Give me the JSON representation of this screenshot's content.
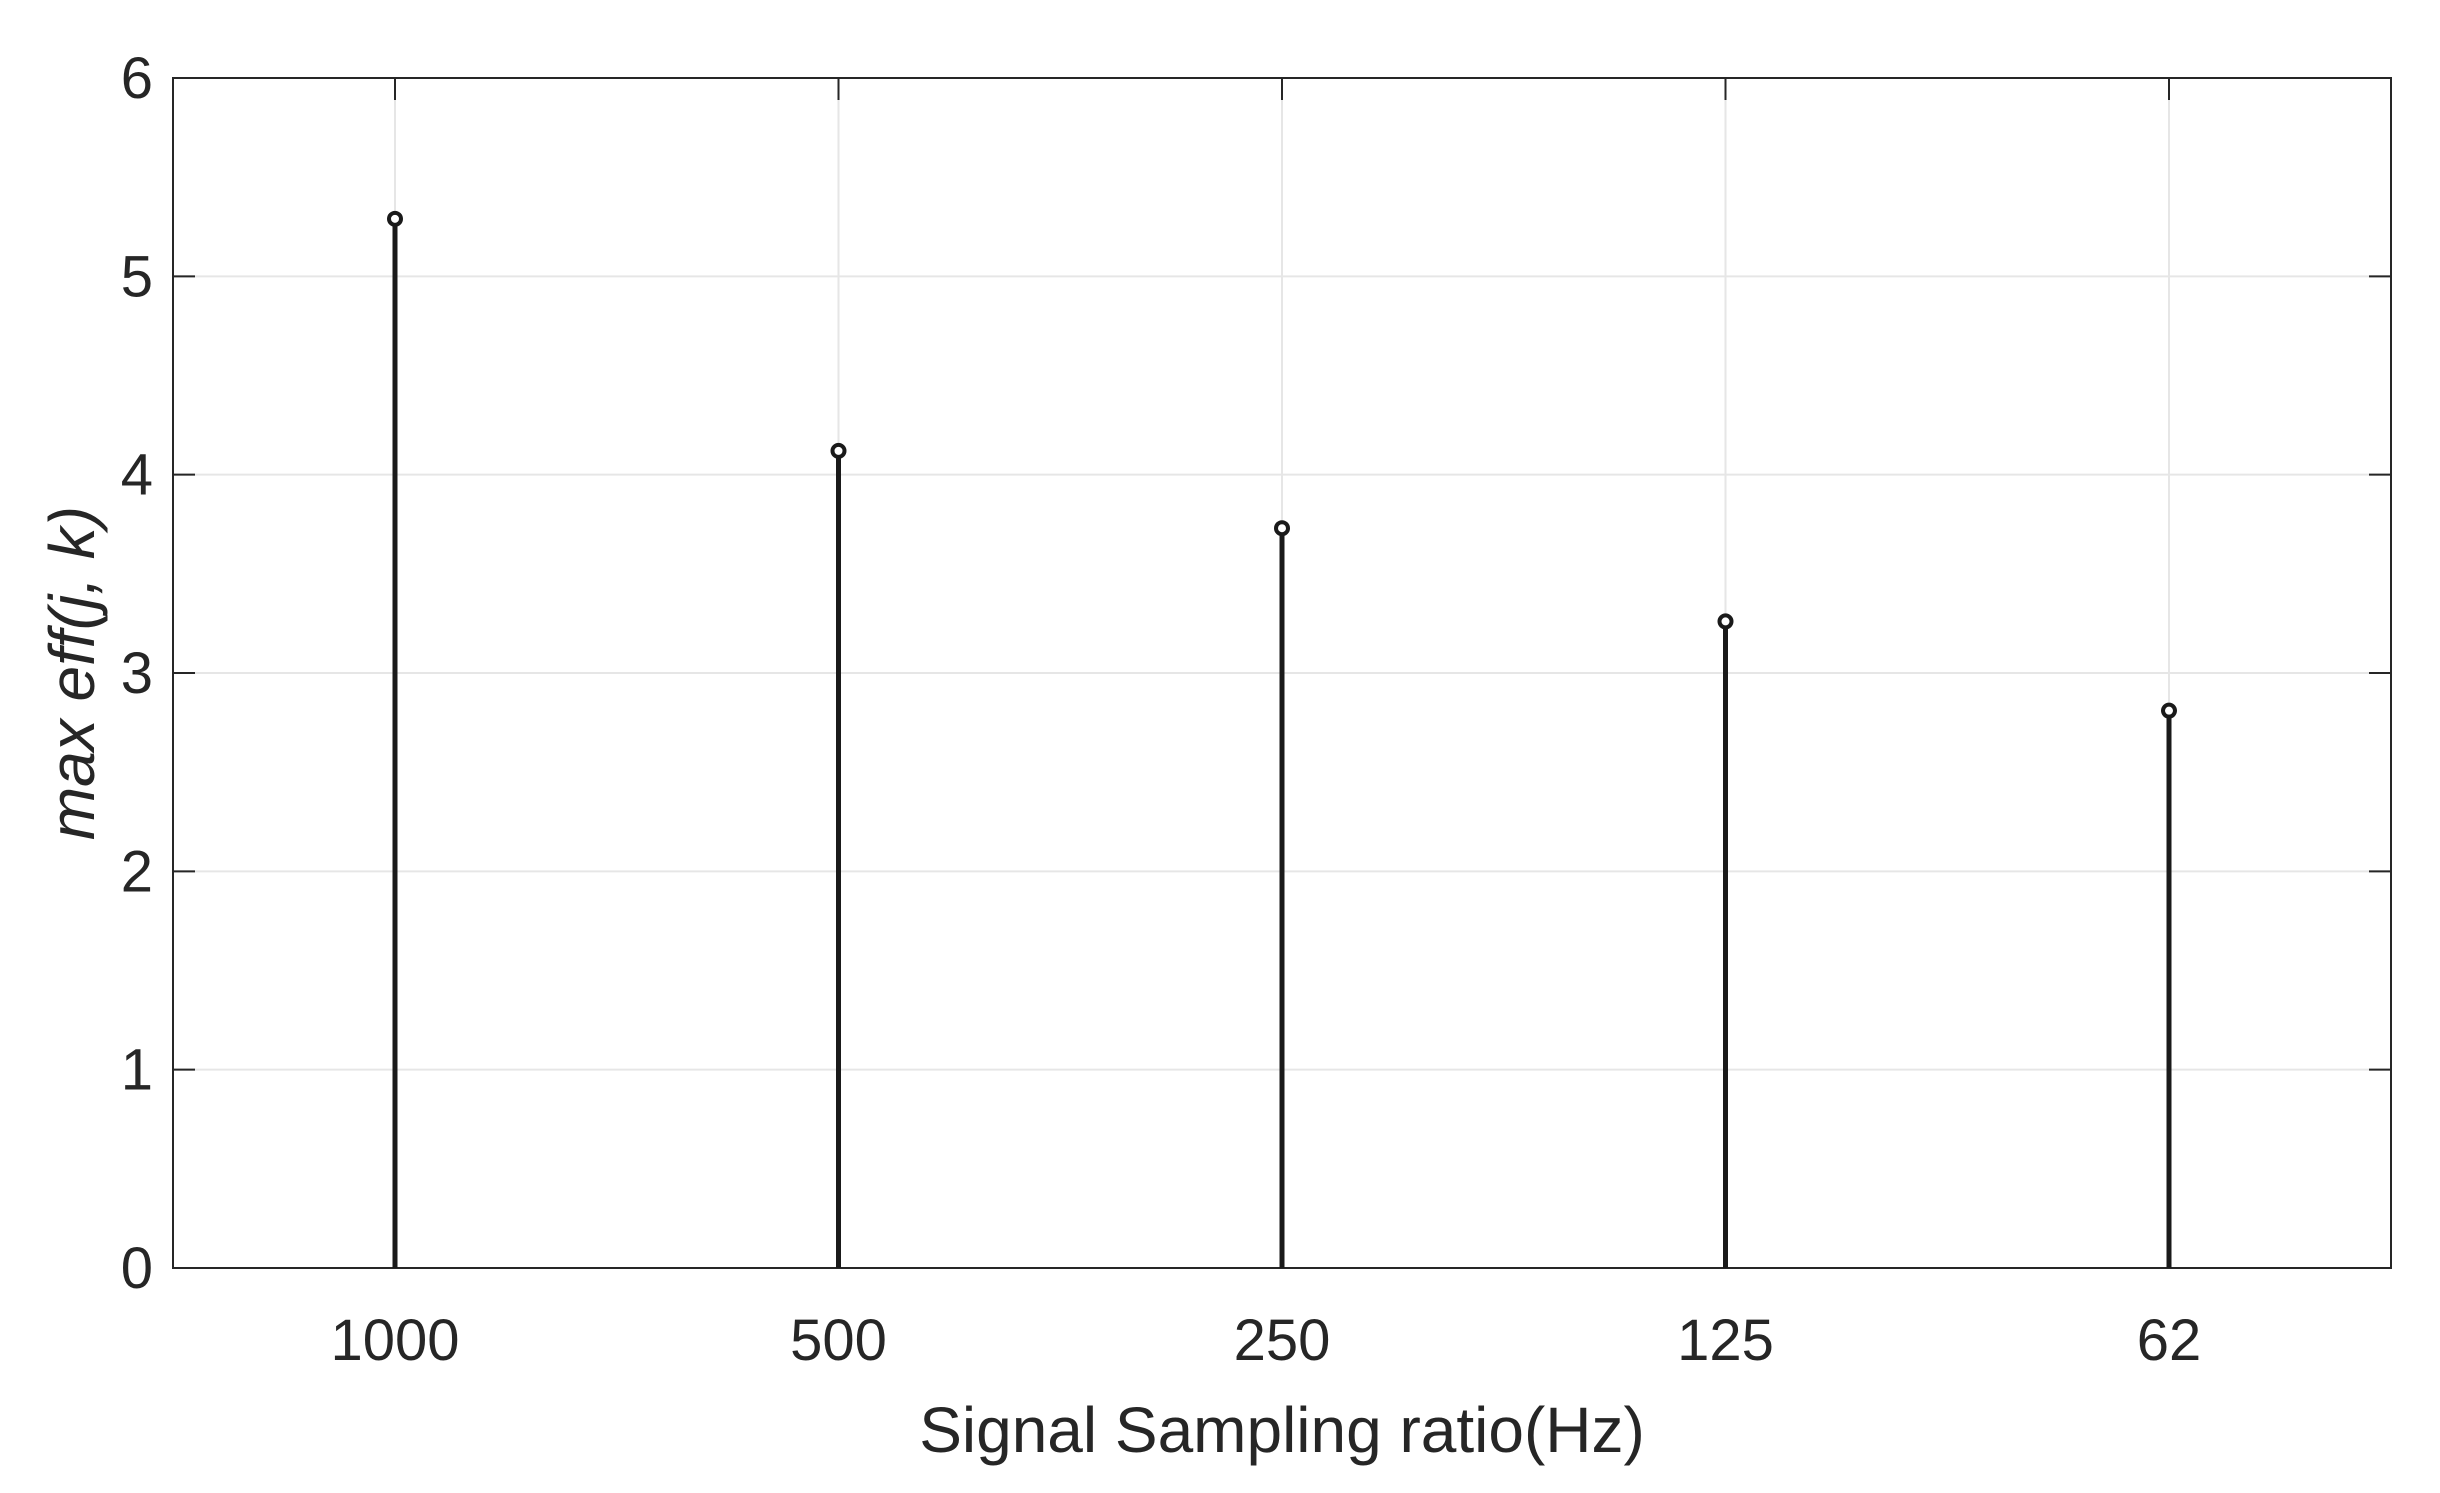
{
  "chart_data": {
    "type": "stem",
    "categories": [
      "1000",
      "500",
      "250",
      "125",
      "62"
    ],
    "values": [
      5.29,
      4.12,
      3.73,
      3.26,
      2.81
    ],
    "xlabel": "Signal Sampling ratio(Hz)",
    "ylabel": "max eff(j, k)",
    "ylim": [
      0,
      6
    ],
    "yticks": [
      "0",
      "1",
      "2",
      "3",
      "4",
      "5",
      "6"
    ],
    "grid": true,
    "legend": "none",
    "colors": {
      "stem": "#1a1a1a",
      "grid": "#e6e6e6",
      "axes": "#262626"
    }
  }
}
